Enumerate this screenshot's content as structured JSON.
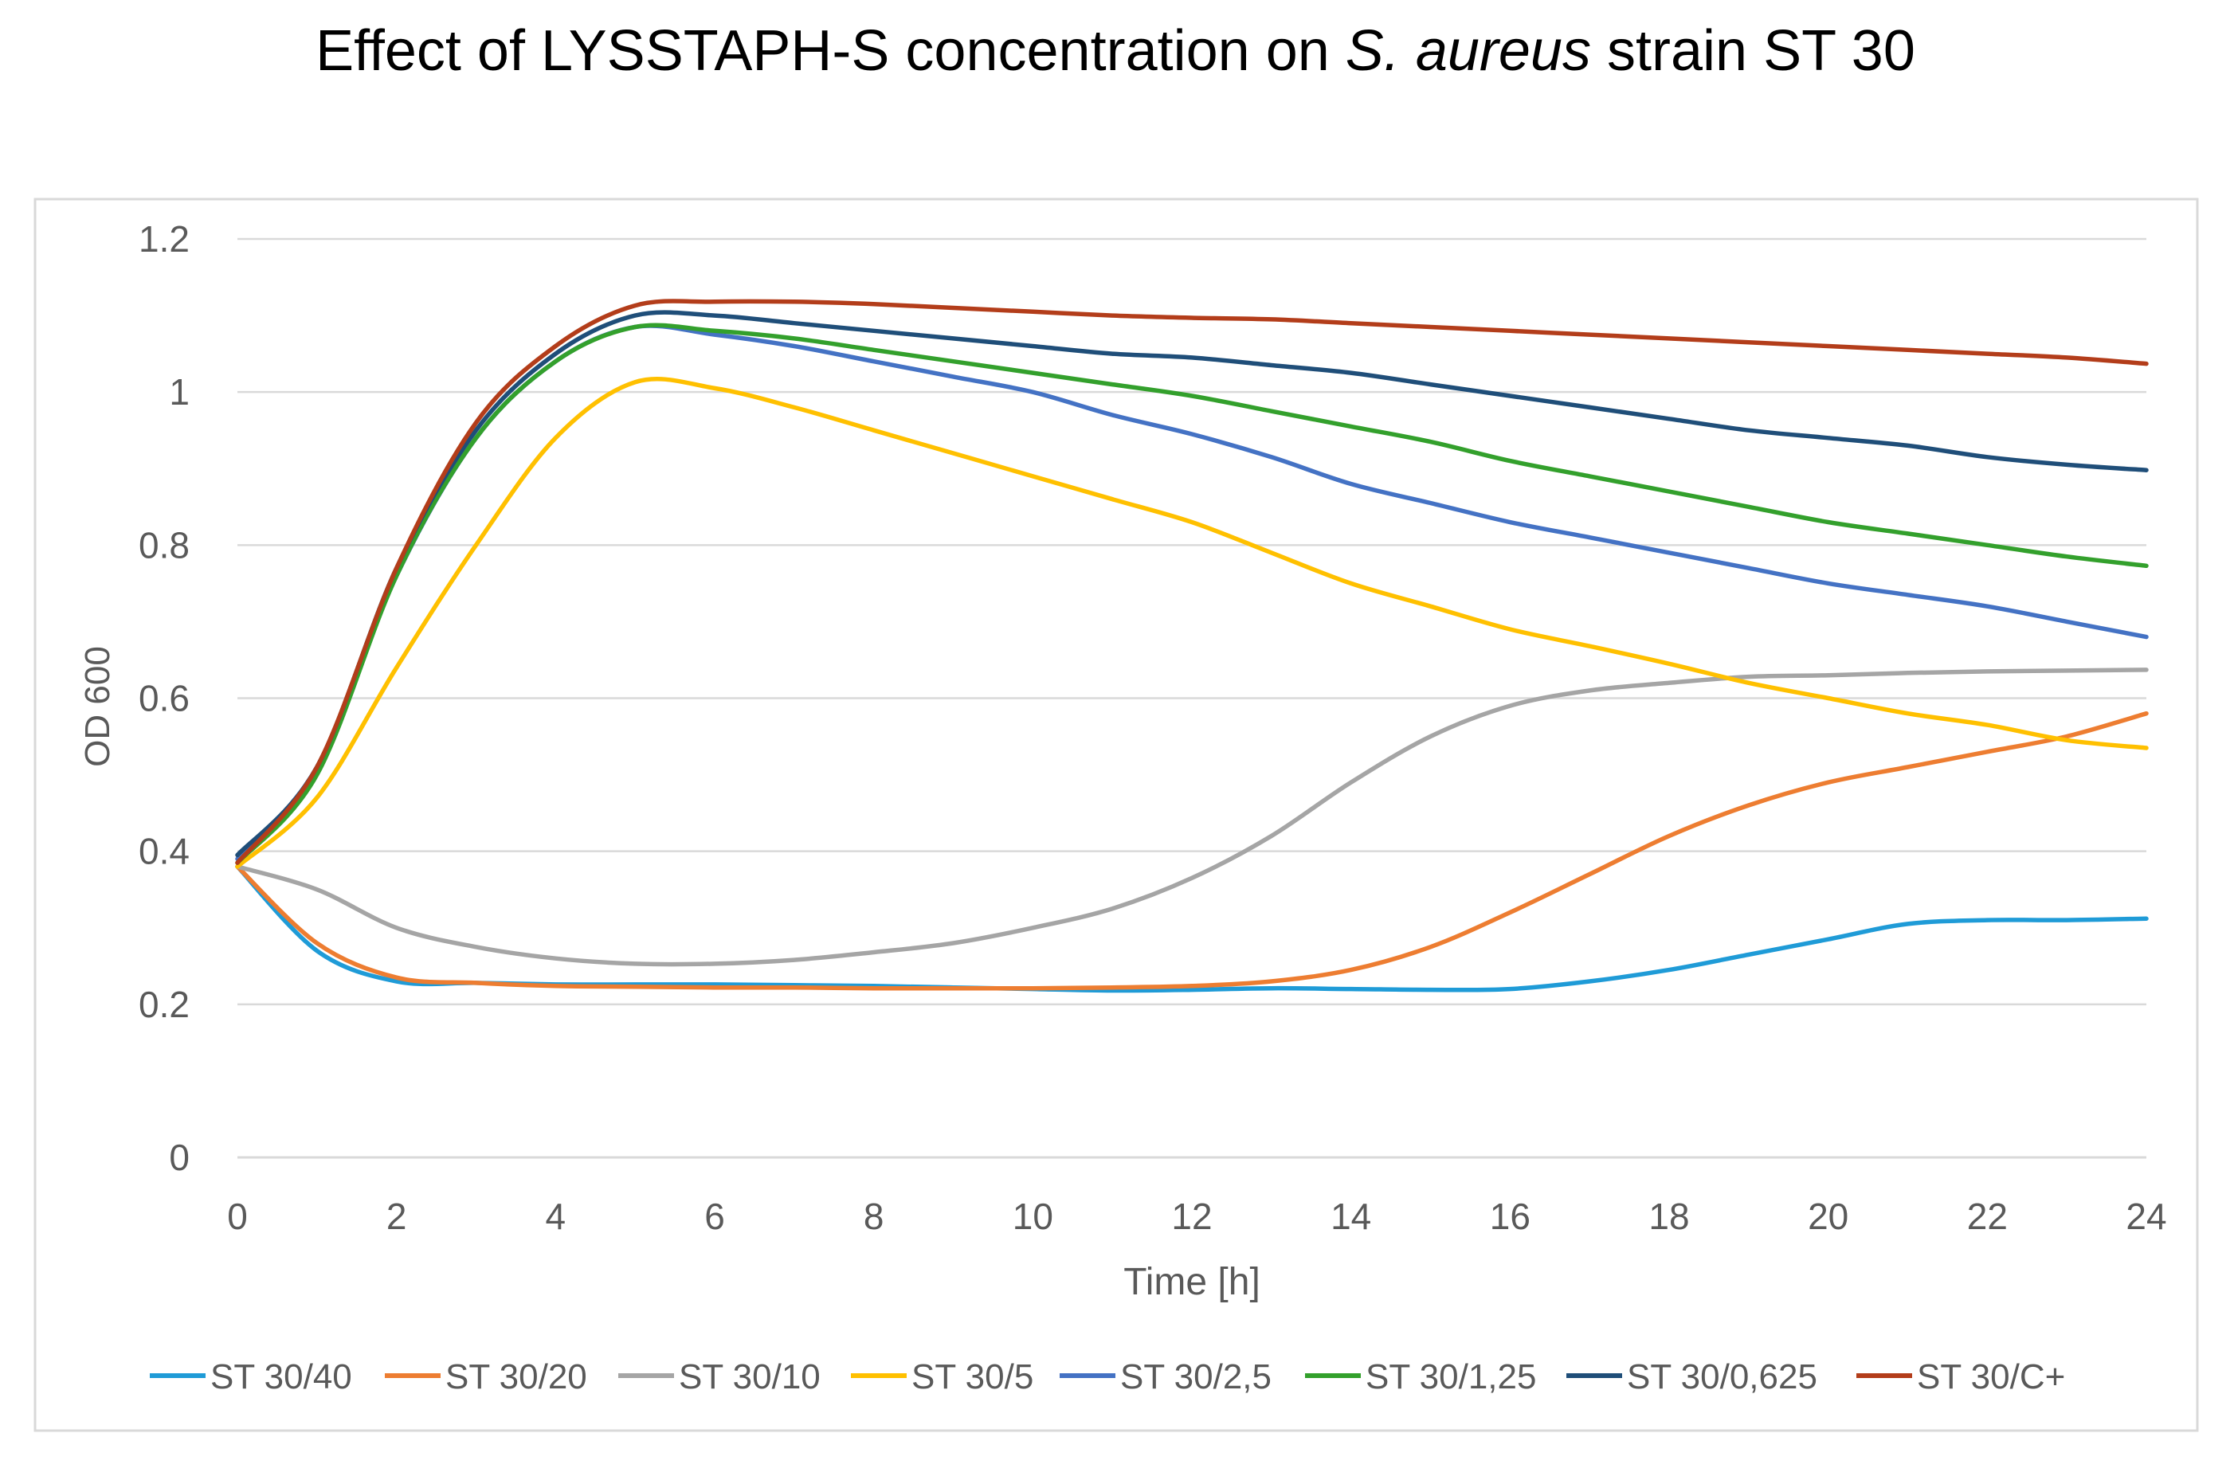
{
  "chart_data": {
    "type": "line",
    "title": "Effect of LYSSTAPH-S concentration on",
    "title_italic": "S. aureus",
    "title_suffix": "strain ST 30",
    "xlabel": "Time [h]",
    "ylabel": "OD 600",
    "xlim": [
      0,
      24
    ],
    "ylim": [
      0,
      1.2
    ],
    "x_ticks": [
      0,
      2,
      4,
      6,
      8,
      10,
      12,
      14,
      16,
      18,
      20,
      22,
      24
    ],
    "y_ticks": [
      0,
      0.2,
      0.4,
      0.6,
      0.8,
      1,
      1.2
    ],
    "y_tick_labels": [
      "0",
      "0.2",
      "0.4",
      "0.6",
      "0.8",
      "1",
      "1.2"
    ],
    "grid": "horizontal",
    "legend_position": "bottom",
    "x": [
      0,
      1,
      2,
      3,
      4,
      5,
      6,
      7,
      8,
      9,
      10,
      11,
      12,
      13,
      14,
      15,
      16,
      17,
      18,
      19,
      20,
      21,
      22,
      23,
      24
    ],
    "series": [
      {
        "name": "ST 30/40",
        "color": "#1F9BD7",
        "values": [
          0.38,
          0.27,
          0.23,
          0.228,
          0.226,
          0.226,
          0.226,
          0.225,
          0.224,
          0.222,
          0.22,
          0.218,
          0.219,
          0.221,
          0.22,
          0.219,
          0.22,
          0.23,
          0.245,
          0.265,
          0.285,
          0.305,
          0.31,
          0.31,
          0.312
        ]
      },
      {
        "name": "ST 30/20",
        "color": "#ED7D31",
        "values": [
          0.38,
          0.28,
          0.235,
          0.228,
          0.224,
          0.223,
          0.222,
          0.222,
          0.221,
          0.221,
          0.221,
          0.222,
          0.224,
          0.23,
          0.245,
          0.275,
          0.32,
          0.37,
          0.42,
          0.46,
          0.49,
          0.51,
          0.53,
          0.55,
          0.58
        ]
      },
      {
        "name": "ST 30/10",
        "color": "#A5A5A5",
        "values": [
          0.38,
          0.35,
          0.3,
          0.275,
          0.26,
          0.253,
          0.253,
          0.258,
          0.268,
          0.28,
          0.3,
          0.325,
          0.365,
          0.42,
          0.49,
          0.55,
          0.59,
          0.61,
          0.62,
          0.628,
          0.63,
          0.633,
          0.635,
          0.636,
          0.637
        ]
      },
      {
        "name": "ST 30/5",
        "color": "#FFC000",
        "values": [
          0.38,
          0.47,
          0.64,
          0.8,
          0.94,
          1.013,
          1.005,
          0.98,
          0.95,
          0.92,
          0.89,
          0.86,
          0.83,
          0.79,
          0.75,
          0.72,
          0.69,
          0.668,
          0.645,
          0.62,
          0.6,
          0.58,
          0.565,
          0.545,
          0.535
        ]
      },
      {
        "name": "ST 30/2,5",
        "color": "#4472C4",
        "values": [
          0.39,
          0.51,
          0.76,
          0.94,
          1.04,
          1.085,
          1.075,
          1.06,
          1.04,
          1.02,
          1.0,
          0.97,
          0.945,
          0.915,
          0.88,
          0.855,
          0.83,
          0.81,
          0.79,
          0.77,
          0.75,
          0.735,
          0.72,
          0.7,
          0.68
        ]
      },
      {
        "name": "ST 30/1,25",
        "color": "#33A02C",
        "values": [
          0.385,
          0.5,
          0.76,
          0.94,
          1.04,
          1.085,
          1.08,
          1.07,
          1.055,
          1.04,
          1.025,
          1.01,
          0.995,
          0.975,
          0.955,
          0.935,
          0.91,
          0.89,
          0.87,
          0.85,
          0.83,
          0.815,
          0.8,
          0.785,
          0.773
        ]
      },
      {
        "name": "ST 30/0,625",
        "color": "#1F4E79",
        "values": [
          0.395,
          0.51,
          0.77,
          0.95,
          1.05,
          1.1,
          1.1,
          1.09,
          1.08,
          1.07,
          1.06,
          1.05,
          1.045,
          1.035,
          1.025,
          1.01,
          0.995,
          0.98,
          0.965,
          0.95,
          0.94,
          0.93,
          0.915,
          0.905,
          0.898
        ]
      },
      {
        "name": "ST 30/C+",
        "color": "#B33D1A",
        "values": [
          0.385,
          0.51,
          0.77,
          0.96,
          1.06,
          1.113,
          1.118,
          1.118,
          1.115,
          1.11,
          1.105,
          1.1,
          1.097,
          1.095,
          1.09,
          1.085,
          1.08,
          1.075,
          1.07,
          1.065,
          1.06,
          1.055,
          1.05,
          1.045,
          1.037
        ]
      }
    ]
  }
}
